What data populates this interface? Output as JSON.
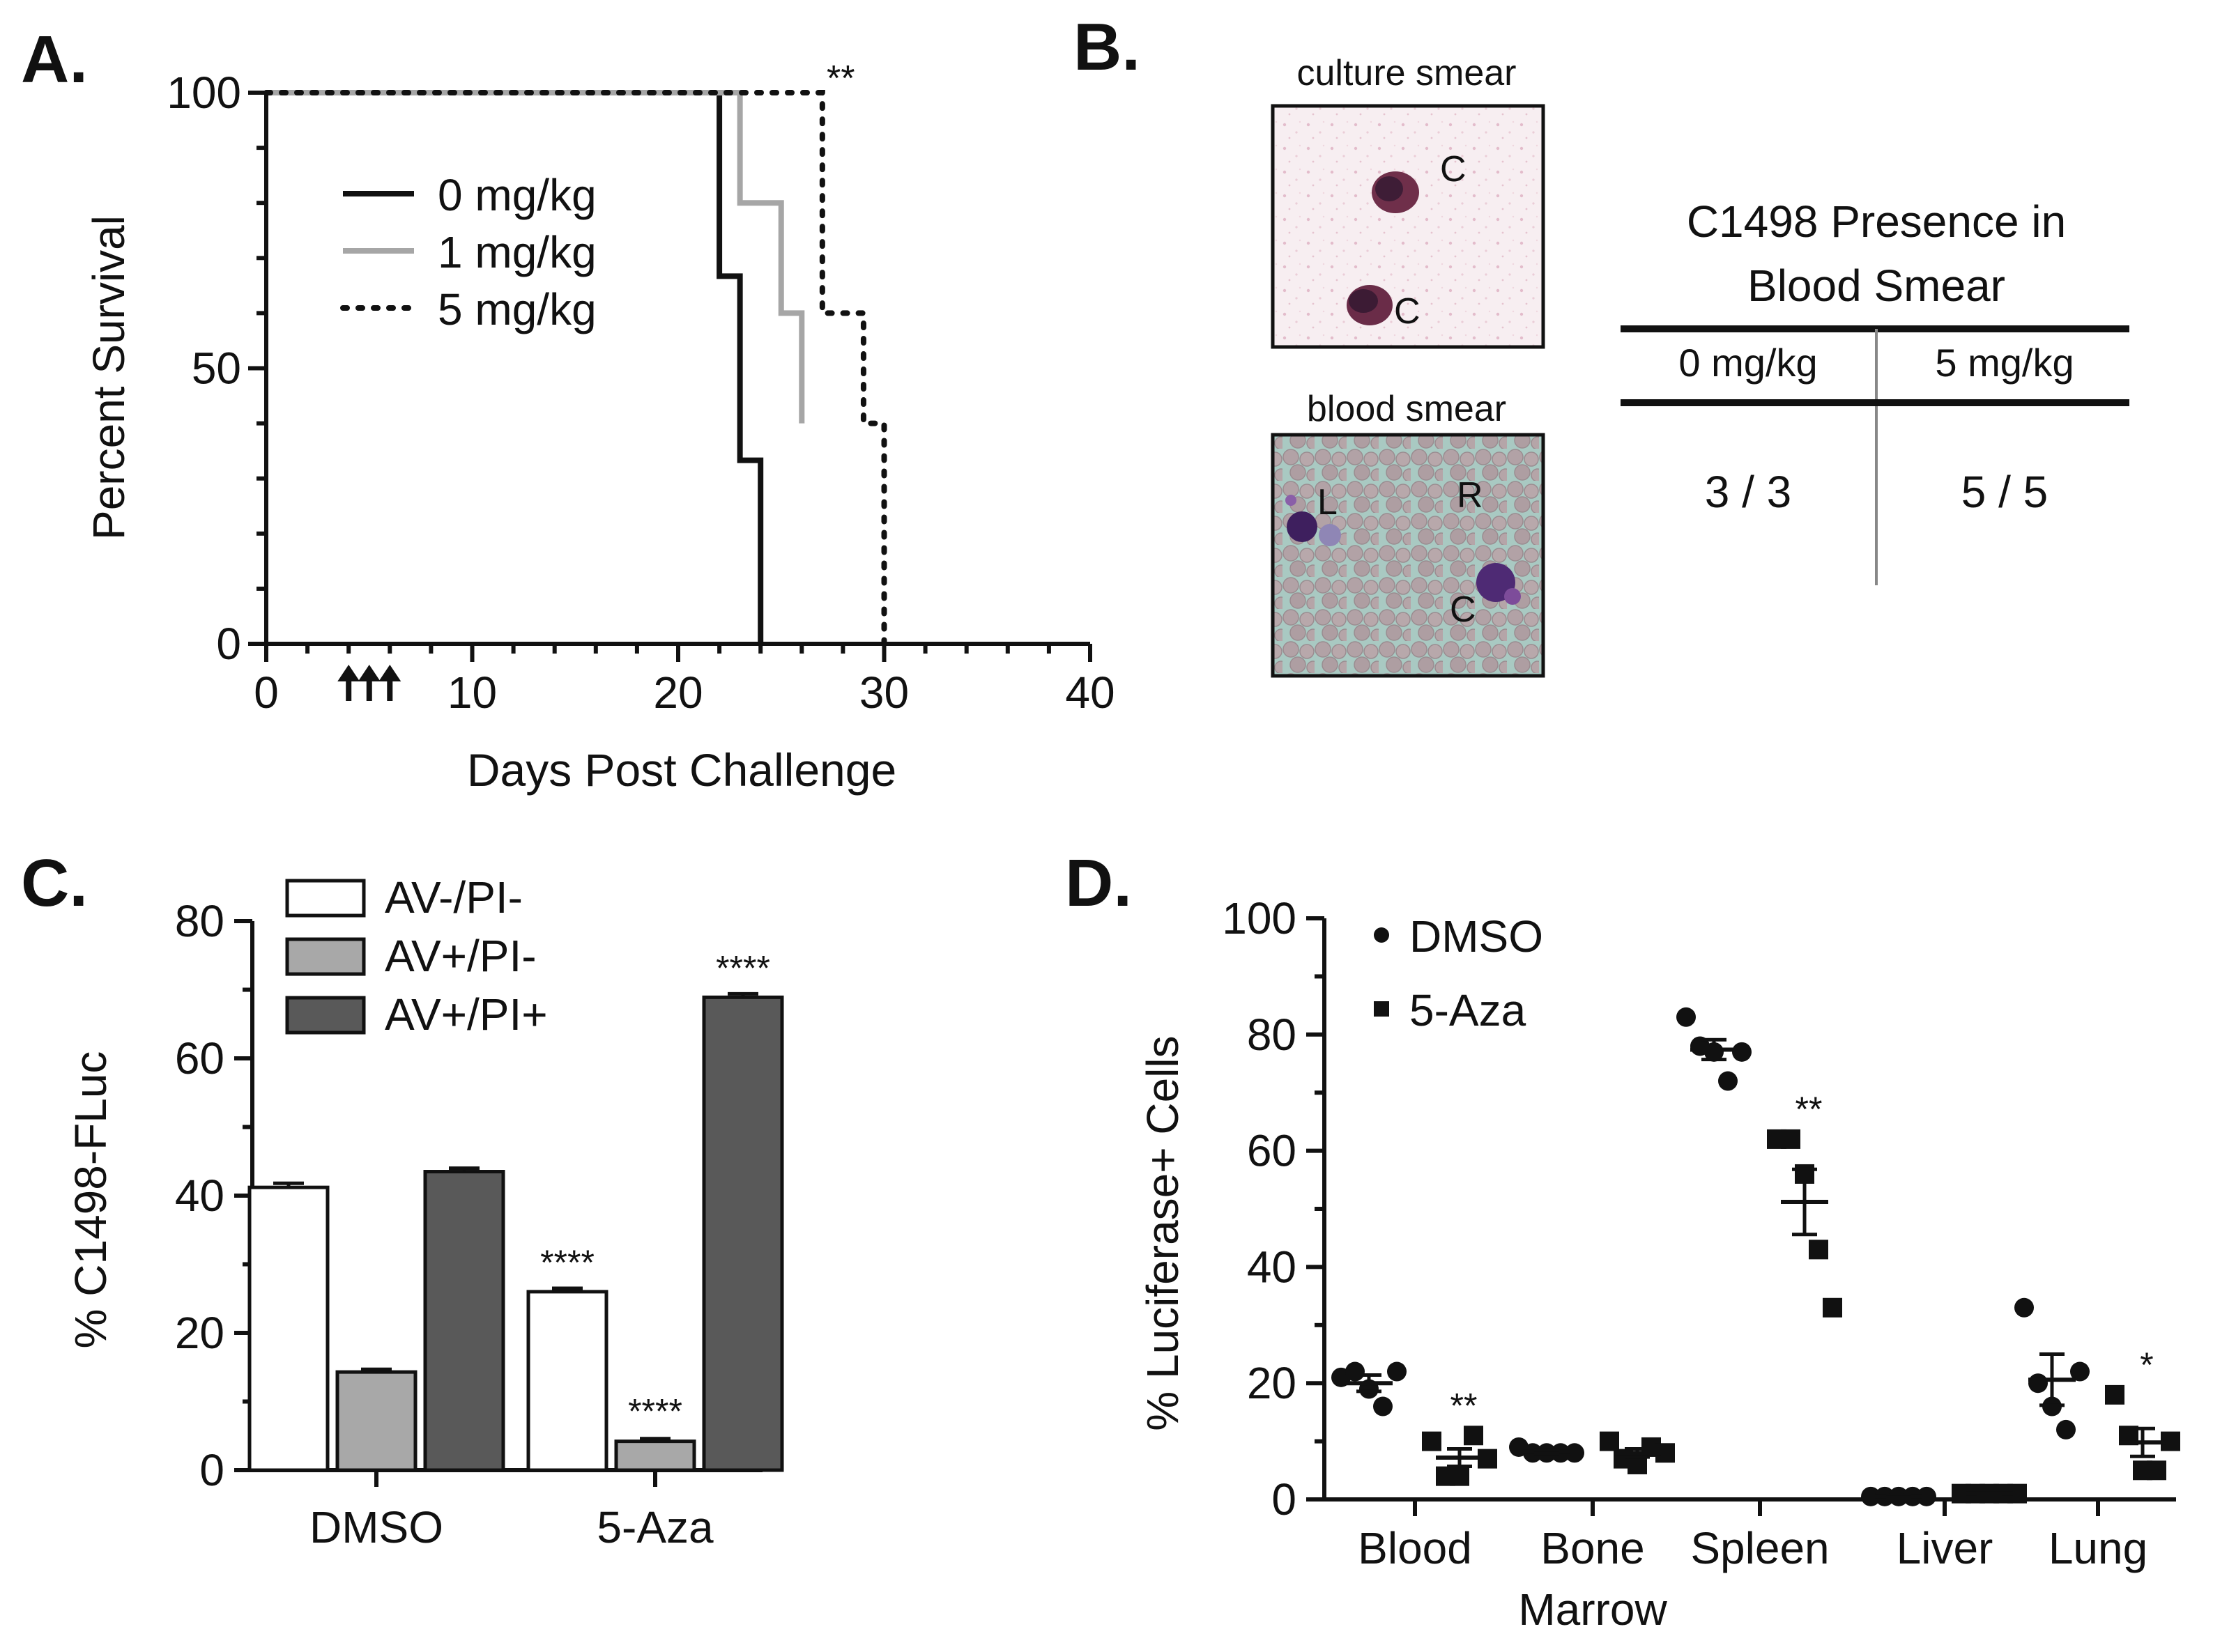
{
  "panels": {
    "a": {
      "letter": "A."
    },
    "b": {
      "letter": "B.",
      "culture_label": "culture smear",
      "blood_label": "blood smear",
      "culture_marks": [
        "C",
        "C"
      ],
      "blood_marks": [
        "L",
        "R",
        "C"
      ],
      "table": {
        "title_line1": "C1498 Presence in",
        "title_line2": "Blood Smear",
        "headers": [
          "0 mg/kg",
          "5 mg/kg"
        ],
        "values": [
          "3 / 3",
          "5 / 5"
        ]
      }
    },
    "c": {
      "letter": "C."
    },
    "d": {
      "letter": "D."
    }
  },
  "chart_data": [
    {
      "panel": "A",
      "type": "line",
      "xlabel": "Days Post Challenge",
      "ylabel": "Percent Survival",
      "xlim": [
        0,
        40
      ],
      "ylim": [
        0,
        100
      ],
      "xticks": [
        0,
        10,
        20,
        30,
        40
      ],
      "yticks": [
        0,
        50,
        100
      ],
      "legend_position": "top-left",
      "series": [
        {
          "name": "0 mg/kg",
          "style": "solid",
          "color": "#111111",
          "x": [
            0,
            22,
            23,
            24
          ],
          "y": [
            100,
            66.7,
            33.3,
            0
          ]
        },
        {
          "name": "1 mg/kg",
          "style": "solid",
          "color": "#a6a6a6",
          "x": [
            0,
            23,
            25,
            26
          ],
          "y": [
            100,
            80,
            60,
            40
          ]
        },
        {
          "name": "5 mg/kg",
          "style": "dotted",
          "color": "#111111",
          "x": [
            0,
            27,
            29,
            30
          ],
          "y": [
            100,
            60,
            40,
            0
          ]
        }
      ],
      "dosing_days": [
        4,
        5,
        6
      ],
      "annotation": "**"
    },
    {
      "panel": "C",
      "type": "bar",
      "ylabel": "% C1498-FLuc",
      "ylim": [
        0,
        80
      ],
      "yticks": [
        0,
        20,
        40,
        60,
        80
      ],
      "categories": [
        "DMSO",
        "5-Aza"
      ],
      "legend_position": "top-left",
      "series": [
        {
          "name": "AV-/PI-",
          "color": "#ffffff",
          "values": [
            41.2,
            26.0
          ],
          "errors": [
            0.6,
            0.5
          ],
          "annotations": [
            "",
            "****"
          ]
        },
        {
          "name": "AV+/PI-",
          "color": "#a8a8a8",
          "values": [
            14.3,
            4.2
          ],
          "errors": [
            0.4,
            0.4
          ],
          "annotations": [
            "",
            "****"
          ]
        },
        {
          "name": "AV+/PI+",
          "color": "#595959",
          "values": [
            43.5,
            68.9
          ],
          "errors": [
            0.5,
            0.5
          ],
          "annotations": [
            "",
            "****"
          ]
        }
      ]
    },
    {
      "panel": "D",
      "type": "scatter",
      "ylabel": "% Luciferase+ Cells",
      "ylim": [
        0,
        100
      ],
      "yticks": [
        0,
        20,
        40,
        60,
        80,
        100
      ],
      "categories": [
        "Blood",
        "Bone\nMarrow",
        "Spleen",
        "Liver",
        "Lung"
      ],
      "legend_position": "top-left",
      "series": [
        {
          "name": "DMSO",
          "marker": "circle",
          "points": [
            [
              21,
              22,
              19,
              16,
              22
            ],
            [
              9,
              8,
              8,
              8,
              8
            ],
            [
              83,
              78,
              77,
              72,
              77
            ],
            [
              0.5,
              0.5,
              0.5,
              0.5,
              0.5
            ],
            [
              33,
              20,
              16,
              12,
              22
            ]
          ],
          "mean": [
            20,
            8.2,
            77.4,
            0.5,
            20.6
          ],
          "sem": [
            1.4,
            0.3,
            1.7,
            0.1,
            4.4
          ]
        },
        {
          "name": "5-Aza",
          "marker": "square",
          "points": [
            [
              10,
              4,
              4,
              11,
              7
            ],
            [
              10,
              7,
              6,
              9,
              8
            ],
            [
              62,
              62,
              56,
              43,
              33
            ],
            [
              1,
              1,
              1,
              1,
              1
            ],
            [
              18,
              11,
              5,
              5,
              10
            ]
          ],
          "mean": [
            7.2,
            8,
            51.2,
            1,
            9.8
          ],
          "sem": [
            1.5,
            0.7,
            5.6,
            0.1,
            2.4
          ],
          "annotations": [
            "**",
            "",
            "**",
            "",
            "*"
          ]
        }
      ]
    }
  ]
}
